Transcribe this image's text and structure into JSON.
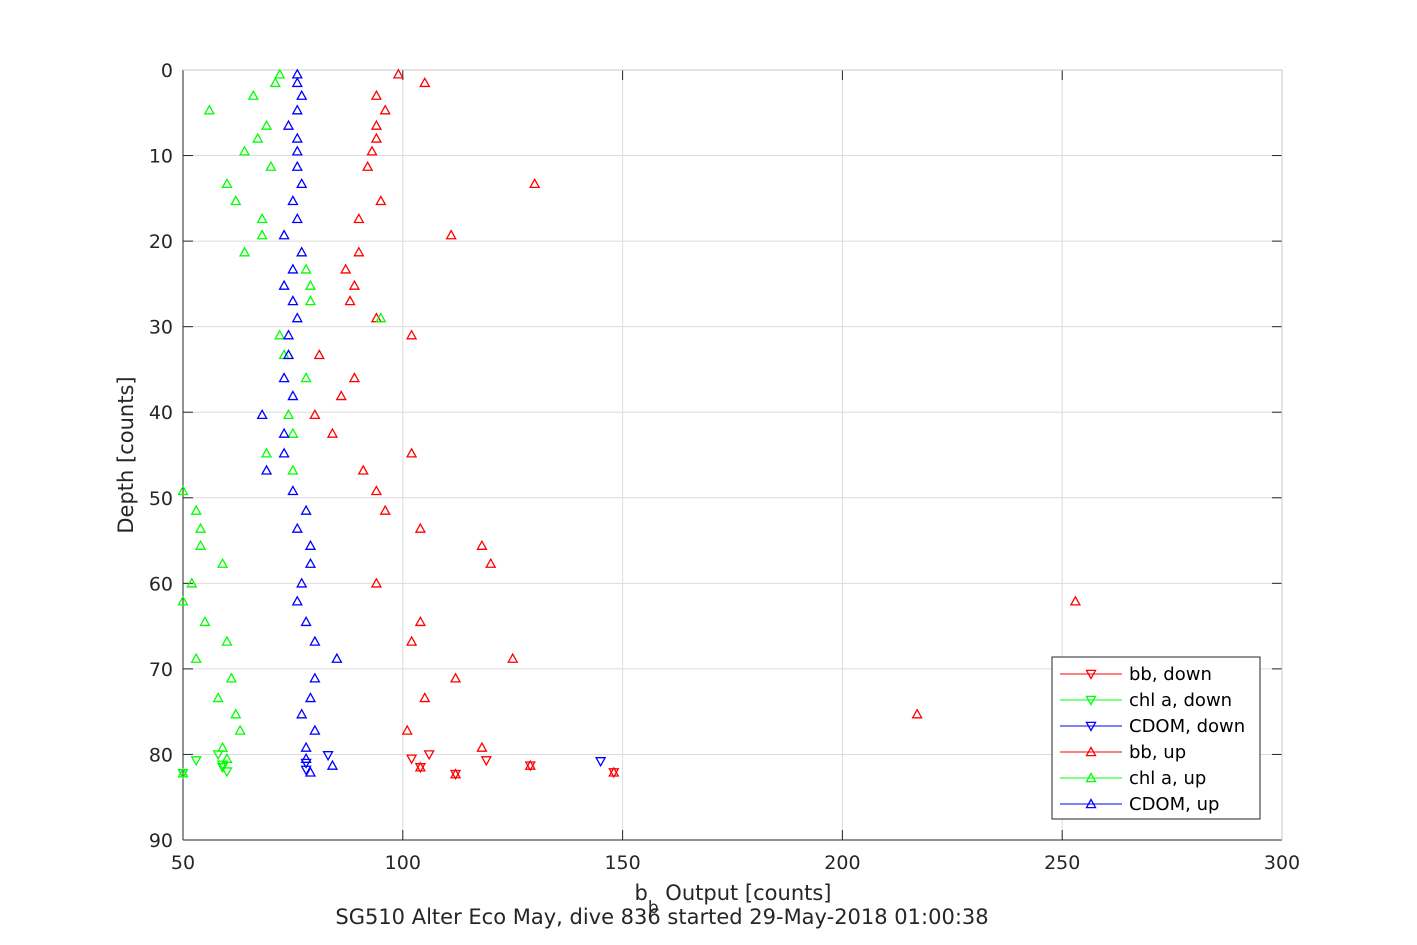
{
  "chart_data": {
    "type": "scatter",
    "xlabel_main": "b",
    "xlabel_sub": "b",
    "xlabel_rest": " Output [counts]",
    "ylabel": "Depth [counts]",
    "subtitle": "SG510 Alter Eco May, dive 836 started 29-May-2018 01:00:38",
    "xlim": [
      50,
      300
    ],
    "ylim": [
      0,
      90
    ],
    "y_reversed": true,
    "grid": true,
    "legend_position": "bottom-right",
    "x_ticks": [
      "50",
      "100",
      "150",
      "200",
      "250",
      "300"
    ],
    "y_ticks": [
      "0",
      "10",
      "20",
      "30",
      "40",
      "50",
      "60",
      "70",
      "80",
      "90"
    ],
    "series": [
      {
        "name": "bb, down",
        "color": "#ff0000",
        "marker": "triangle-down",
        "points": [
          [
            106,
            80
          ],
          [
            104,
            81.5
          ],
          [
            112,
            82.3
          ],
          [
            119,
            80.7
          ],
          [
            102,
            80.5
          ],
          [
            129,
            81.3
          ],
          [
            148,
            82.1
          ]
        ]
      },
      {
        "name": "chl a, down",
        "color": "#00ff00",
        "marker": "triangle-down",
        "points": [
          [
            50,
            82.2
          ],
          [
            53,
            80.7
          ],
          [
            58,
            80
          ],
          [
            59,
            81.2
          ],
          [
            60,
            82
          ],
          [
            59,
            81.5
          ]
        ]
      },
      {
        "name": "CDOM, down",
        "color": "#0000ff",
        "marker": "triangle-down",
        "points": [
          [
            83,
            80.1
          ],
          [
            78,
            81
          ],
          [
            78,
            81.8
          ],
          [
            145,
            80.8
          ]
        ]
      },
      {
        "name": "bb, up",
        "color": "#ff0000",
        "marker": "triangle-up",
        "points": [
          [
            99,
            0.5
          ],
          [
            105,
            1.5
          ],
          [
            94,
            3
          ],
          [
            96,
            4.7
          ],
          [
            94,
            6.5
          ],
          [
            94,
            8
          ],
          [
            93,
            9.5
          ],
          [
            92,
            11.3
          ],
          [
            130,
            13.3
          ],
          [
            95,
            15.3
          ],
          [
            90,
            17.4
          ],
          [
            111,
            19.3
          ],
          [
            90,
            21.3
          ],
          [
            87,
            23.3
          ],
          [
            89,
            25.2
          ],
          [
            88,
            27
          ],
          [
            94,
            29
          ],
          [
            102,
            31
          ],
          [
            81,
            33.3
          ],
          [
            89,
            36
          ],
          [
            86,
            38.1
          ],
          [
            80,
            40.3
          ],
          [
            84,
            42.5
          ],
          [
            102,
            44.8
          ],
          [
            91,
            46.8
          ],
          [
            94,
            49.2
          ],
          [
            96,
            51.5
          ],
          [
            104,
            53.6
          ],
          [
            118,
            55.6
          ],
          [
            120,
            57.7
          ],
          [
            94,
            60
          ],
          [
            253,
            62.1
          ],
          [
            104,
            64.5
          ],
          [
            102,
            66.8
          ],
          [
            125,
            68.8
          ],
          [
            112,
            71.1
          ],
          [
            105,
            73.4
          ],
          [
            217,
            75.3
          ],
          [
            101,
            77.2
          ],
          [
            118,
            79.2
          ],
          [
            104,
            81.5
          ],
          [
            112,
            82.3
          ],
          [
            129,
            81.3
          ],
          [
            148,
            82.1
          ]
        ]
      },
      {
        "name": "chl a, up",
        "color": "#00ff00",
        "marker": "triangle-up",
        "points": [
          [
            72,
            0.5
          ],
          [
            71,
            1.5
          ],
          [
            66,
            3
          ],
          [
            56,
            4.7
          ],
          [
            69,
            6.5
          ],
          [
            67,
            8
          ],
          [
            64,
            9.5
          ],
          [
            70,
            11.3
          ],
          [
            60,
            13.3
          ],
          [
            62,
            15.3
          ],
          [
            68,
            17.4
          ],
          [
            68,
            19.3
          ],
          [
            64,
            21.3
          ],
          [
            78,
            23.3
          ],
          [
            79,
            25.2
          ],
          [
            79,
            27
          ],
          [
            95,
            29
          ],
          [
            72,
            31
          ],
          [
            73,
            33.3
          ],
          [
            78,
            36
          ],
          [
            74,
            40.3
          ],
          [
            75,
            42.5
          ],
          [
            69,
            44.8
          ],
          [
            75,
            46.8
          ],
          [
            50,
            49.2
          ],
          [
            53,
            51.5
          ],
          [
            54,
            53.6
          ],
          [
            54,
            55.6
          ],
          [
            59,
            57.7
          ],
          [
            52,
            60
          ],
          [
            50,
            62.1
          ],
          [
            55,
            64.5
          ],
          [
            60,
            66.8
          ],
          [
            53,
            68.8
          ],
          [
            61,
            71.1
          ],
          [
            58,
            73.4
          ],
          [
            62,
            75.3
          ],
          [
            63,
            77.2
          ],
          [
            59,
            79.2
          ],
          [
            60,
            80.5
          ],
          [
            50,
            82.2
          ]
        ]
      },
      {
        "name": "CDOM, up",
        "color": "#0000ff",
        "marker": "triangle-up",
        "points": [
          [
            76,
            0.5
          ],
          [
            76,
            1.5
          ],
          [
            77,
            3
          ],
          [
            76,
            4.7
          ],
          [
            74,
            6.5
          ],
          [
            76,
            8
          ],
          [
            76,
            9.5
          ],
          [
            76,
            11.3
          ],
          [
            77,
            13.3
          ],
          [
            75,
            15.3
          ],
          [
            76,
            17.4
          ],
          [
            73,
            19.3
          ],
          [
            77,
            21.3
          ],
          [
            75,
            23.3
          ],
          [
            73,
            25.2
          ],
          [
            75,
            27
          ],
          [
            76,
            29
          ],
          [
            74,
            31
          ],
          [
            74,
            33.3
          ],
          [
            73,
            36
          ],
          [
            75,
            38.1
          ],
          [
            68,
            40.3
          ],
          [
            73,
            42.5
          ],
          [
            73,
            44.8
          ],
          [
            69,
            46.8
          ],
          [
            75,
            49.2
          ],
          [
            78,
            51.5
          ],
          [
            76,
            53.6
          ],
          [
            79,
            55.6
          ],
          [
            79,
            57.7
          ],
          [
            77,
            60
          ],
          [
            76,
            62.1
          ],
          [
            78,
            64.5
          ],
          [
            80,
            66.8
          ],
          [
            85,
            68.8
          ],
          [
            80,
            71.1
          ],
          [
            79,
            73.4
          ],
          [
            77,
            75.3
          ],
          [
            80,
            77.2
          ],
          [
            78,
            79.2
          ],
          [
            78,
            80.5
          ],
          [
            84,
            81.3
          ],
          [
            79,
            82.1
          ]
        ]
      }
    ]
  }
}
